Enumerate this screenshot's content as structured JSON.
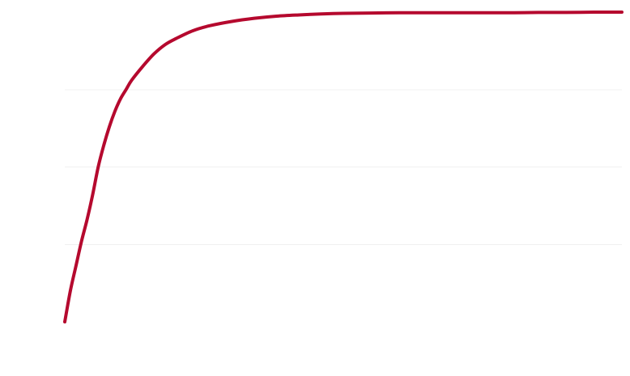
{
  "chart_data": {
    "type": "line",
    "title": "",
    "xlabel": "",
    "ylabel": "",
    "grid": true,
    "legend": "none",
    "xlim": [
      0,
      100
    ],
    "ylim": [
      0,
      100
    ],
    "y_gridlines": [
      0,
      25,
      50,
      75,
      100
    ],
    "series": [
      {
        "color": "#b5092e",
        "x": [
          0,
          1,
          2,
          3,
          4,
          5,
          6,
          7,
          8,
          9,
          10,
          11,
          12,
          14,
          16,
          18,
          20,
          23,
          26,
          30,
          34,
          38,
          42,
          46,
          50,
          55,
          60,
          65,
          70,
          75,
          80,
          85,
          90,
          95,
          100
        ],
        "y": [
          0,
          10,
          18,
          26,
          33,
          41,
          50,
          57,
          63,
          68,
          72,
          75,
          78,
          82.5,
          86.5,
          89.5,
          91.5,
          94,
          95.6,
          97,
          98,
          98.7,
          99.1,
          99.4,
          99.6,
          99.7,
          99.8,
          99.8,
          99.8,
          99.8,
          99.8,
          99.9,
          99.9,
          100,
          100
        ]
      }
    ]
  }
}
